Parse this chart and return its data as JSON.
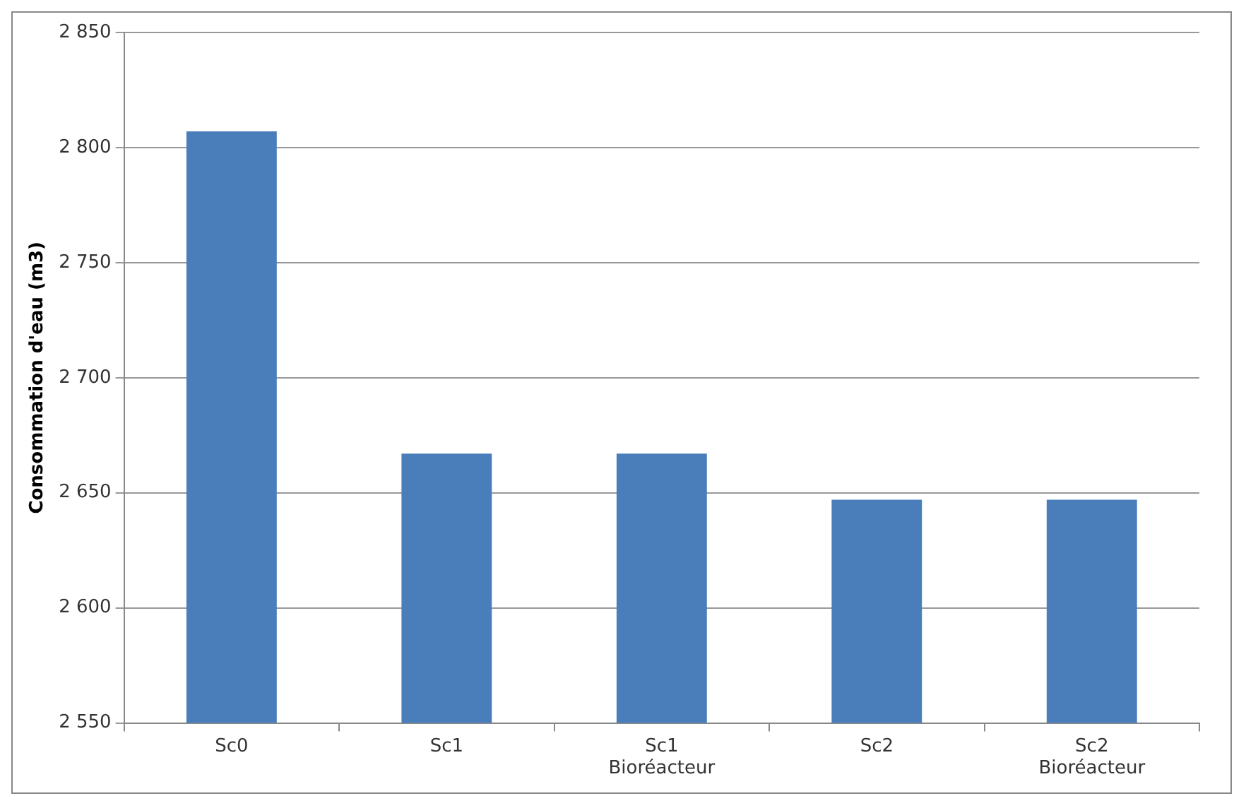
{
  "chart_data": {
    "type": "bar",
    "ylabel": "Consommation d'eau (m3)",
    "categories": [
      "Sc0",
      "Sc1",
      "Sc1 Bioréacteur",
      "Sc2",
      "Sc2 Bioréacteur"
    ],
    "values": [
      2807,
      2667,
      2667,
      2647,
      2647
    ],
    "color": "#4a7ebb",
    "ylim": [
      2550,
      2850
    ],
    "yticks": [
      {
        "value": 2550,
        "label": "2 550"
      },
      {
        "value": 2600,
        "label": "2 600"
      },
      {
        "value": 2650,
        "label": "2 650"
      },
      {
        "value": 2700,
        "label": "2 700"
      },
      {
        "value": 2750,
        "label": "2 750"
      },
      {
        "value": 2800,
        "label": "2 800"
      },
      {
        "value": 2850,
        "label": "2 850"
      }
    ],
    "grid": "y",
    "legend": false
  }
}
